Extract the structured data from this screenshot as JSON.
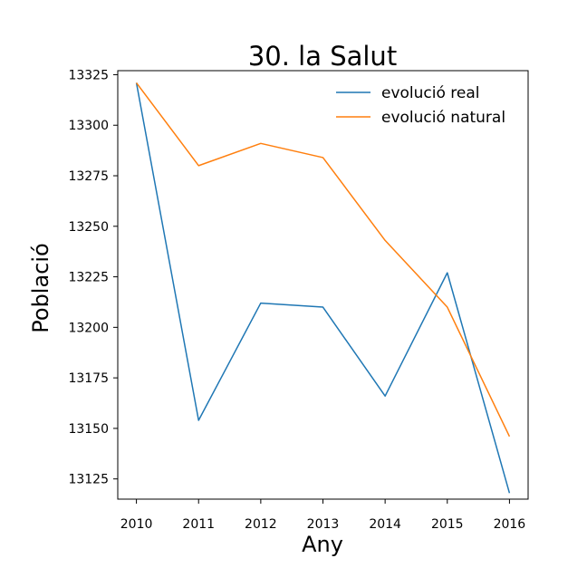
{
  "chart_data": {
    "type": "line",
    "title": "30. la Salut",
    "xlabel": "Any",
    "ylabel": "Població",
    "categories": [
      2010,
      2011,
      2012,
      2013,
      2014,
      2015,
      2016
    ],
    "xlim": [
      2009.7,
      2016.3
    ],
    "ylim": [
      13115,
      13327
    ],
    "yticks": [
      13125,
      13150,
      13175,
      13200,
      13225,
      13250,
      13275,
      13300,
      13325
    ],
    "grid": false,
    "legend_position": "top-right",
    "series": [
      {
        "name": "evolució real",
        "color": "#1f77b4",
        "values": [
          13321,
          13154,
          13212,
          13210,
          13166,
          13227,
          13118
        ]
      },
      {
        "name": "evolució natural",
        "color": "#ff7f0e",
        "values": [
          13321,
          13280,
          13291,
          13284,
          13243,
          13210,
          13146
        ]
      }
    ]
  }
}
